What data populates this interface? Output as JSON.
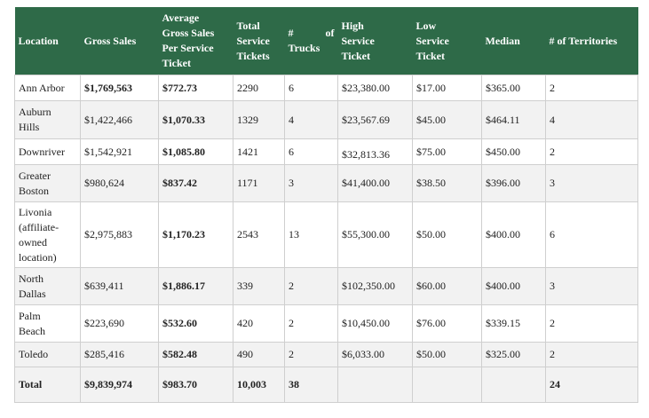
{
  "headers": {
    "location": "Location",
    "gross_sales": "Gross Sales",
    "avg_gross": [
      "Average",
      "Gross Sales",
      "Per Service",
      "Ticket"
    ],
    "total_tickets": [
      "Total",
      "Service",
      "Tickets"
    ],
    "trucks": [
      "#",
      "of",
      "Trucks"
    ],
    "high_ticket": [
      "High",
      "Service",
      "Ticket"
    ],
    "low_ticket": [
      "Low",
      "Service",
      "Ticket"
    ],
    "median": "Median",
    "territories": "# of Territories"
  },
  "rows": [
    {
      "location": [
        "Ann Arbor"
      ],
      "gross": "$1,769,563",
      "avg": "$772.73",
      "tickets": "2290",
      "trucks": "6",
      "high": "$23,380.00",
      "low": "$17.00",
      "median": "$365.00",
      "territories": "2"
    },
    {
      "location": [
        "Auburn",
        "Hills"
      ],
      "gross": "$1,422,466",
      "avg": "$1,070.33",
      "tickets": "1329",
      "trucks": "4",
      "high": "$23,567.69",
      "low": "$45.00",
      "median": "$464.11",
      "territories": "4"
    },
    {
      "location": [
        "Downriver"
      ],
      "gross": "$1,542,921",
      "avg": "$1,085.80",
      "tickets": "1421",
      "trucks": "6",
      "high": "$32,813.36",
      "low": "$75.00",
      "median": "$450.00",
      "territories": "2"
    },
    {
      "location": [
        "Greater",
        "Boston"
      ],
      "gross": "$980,624",
      "avg": "$837.42",
      "tickets": "1171",
      "trucks": "3",
      "high": "$41,400.00",
      "low": "$38.50",
      "median": "$396.00",
      "territories": "3"
    },
    {
      "location": [
        "Livonia",
        "(affiliate-",
        "owned",
        "location)"
      ],
      "gross": "$2,975,883",
      "avg": "$1,170.23",
      "tickets": "2543",
      "trucks": "13",
      "high": "$55,300.00",
      "low": "$50.00",
      "median": "$400.00",
      "territories": "6"
    },
    {
      "location": [
        "North",
        "Dallas"
      ],
      "gross": "$639,411",
      "avg": "$1,886.17",
      "tickets": "339",
      "trucks": "2",
      "high": "$102,350.00",
      "low": "$60.00",
      "median": "$400.00",
      "territories": "3"
    },
    {
      "location": [
        "Palm",
        "Beach"
      ],
      "gross": "$223,690",
      "avg": "$532.60",
      "tickets": "420",
      "trucks": "2",
      "high": "$10,450.00",
      "low": "$76.00",
      "median": "$339.15",
      "territories": "2"
    },
    {
      "location": [
        "Toledo"
      ],
      "gross": "$285,416",
      "avg": "$582.48",
      "tickets": "490",
      "trucks": "2",
      "high": "$6,033.00",
      "low": "$50.00",
      "median": "$325.00",
      "territories": "2"
    }
  ],
  "total": {
    "location": "Total",
    "gross": "$9,839,974",
    "avg": "$983.70",
    "tickets": "10,003",
    "trucks": "38",
    "high": "",
    "low": "",
    "median": "",
    "territories": "24"
  }
}
